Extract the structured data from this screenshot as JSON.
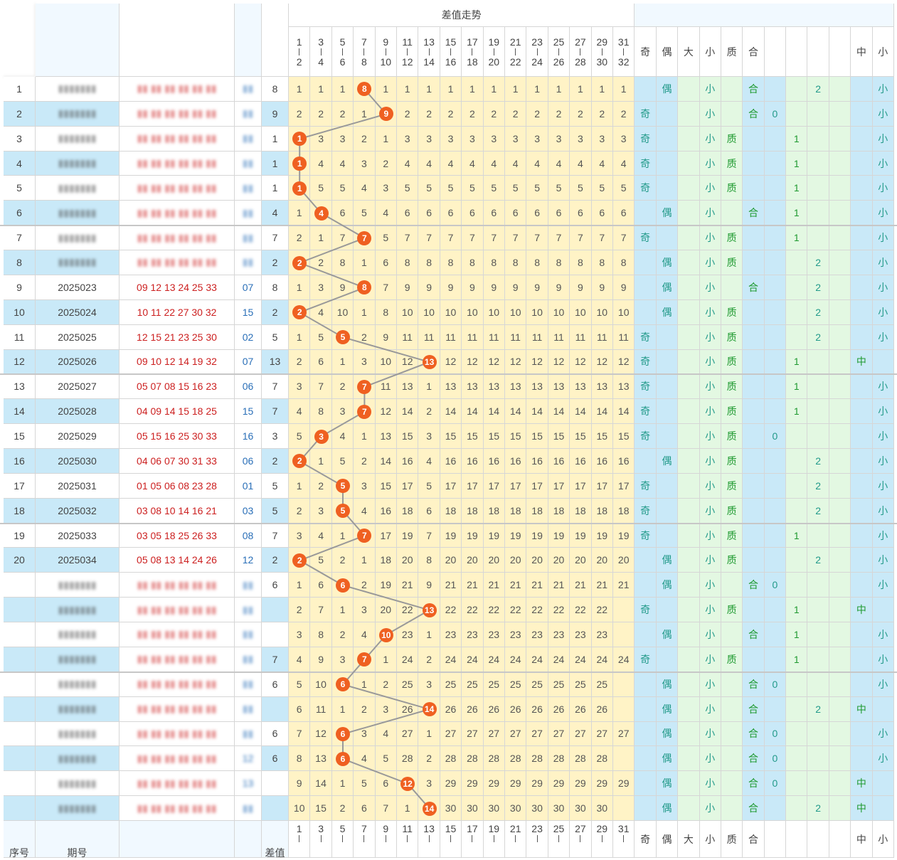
{
  "header": {
    "title": "差值走势",
    "left_labels": {
      "seq": "序号",
      "period": "期号",
      "diff": "差值"
    },
    "tail_labels": [
      "奇",
      "偶",
      "大",
      "小",
      "质",
      "合",
      "",
      "",
      "",
      "",
      "中",
      "小"
    ],
    "col_pairs": [
      [
        "1",
        "2"
      ],
      [
        "3",
        "4"
      ],
      [
        "5",
        "6"
      ],
      [
        "7",
        "8"
      ],
      [
        "9",
        "10"
      ],
      [
        "11",
        "12"
      ],
      [
        "13",
        "14"
      ],
      [
        "15",
        "16"
      ],
      [
        "17",
        "18"
      ],
      [
        "19",
        "20"
      ],
      [
        "21",
        "22"
      ],
      [
        "23",
        "24"
      ],
      [
        "25",
        "26"
      ],
      [
        "27",
        "28"
      ],
      [
        "29",
        "30"
      ],
      [
        "31",
        "32"
      ]
    ],
    "footer_col_tops": [
      "1",
      "3",
      "5",
      "7",
      "9",
      "11",
      "13",
      "15",
      "17",
      "19",
      "21",
      "23",
      "25",
      "27",
      "29",
      "31"
    ]
  },
  "colors": {
    "ball": "#ef6021",
    "line": "#999999",
    "blue_bg": "#c9e9f8",
    "yellow_bg": "#fff3c6",
    "green_bg": "#e3f8e2",
    "red_text": "#cc1f1f",
    "blue_text": "#2a6fb8"
  },
  "rows": [
    {
      "n": "1",
      "period": "",
      "nums": "",
      "blue": "",
      "diff": "8",
      "hit": 3,
      "cells": [
        "1",
        "1",
        "1",
        "8",
        "1",
        "1",
        "1",
        "1",
        "1",
        "1",
        "1",
        "1",
        "1",
        "1",
        "1",
        "1"
      ],
      "odd": "",
      "even": "偶",
      "big": "",
      "small": "小",
      "prime": "",
      "comp": "合",
      "r0": "",
      "r1": "",
      "r2": "2",
      "mid": "",
      "last": "小",
      "blur": true
    },
    {
      "n": "2",
      "period": "",
      "nums": "",
      "blue": "",
      "diff": "9",
      "hit": 4,
      "cells": [
        "2",
        "2",
        "2",
        "1",
        "9",
        "2",
        "2",
        "2",
        "2",
        "2",
        "2",
        "2",
        "2",
        "2",
        "2",
        "2"
      ],
      "odd": "奇",
      "even": "",
      "big": "",
      "small": "小",
      "prime": "",
      "comp": "合",
      "r0": "0",
      "r1": "",
      "r2": "",
      "mid": "",
      "last": "小",
      "blur": true
    },
    {
      "n": "3",
      "period": "",
      "nums": "",
      "blue": "",
      "diff": "1",
      "hit": 0,
      "cells": [
        "1",
        "3",
        "3",
        "2",
        "1",
        "3",
        "3",
        "3",
        "3",
        "3",
        "3",
        "3",
        "3",
        "3",
        "3",
        "3"
      ],
      "odd": "奇",
      "even": "",
      "big": "",
      "small": "小",
      "prime": "质",
      "comp": "",
      "r0": "",
      "r1": "1",
      "r2": "",
      "mid": "",
      "last": "小",
      "blur": true
    },
    {
      "n": "4",
      "period": "",
      "nums": "",
      "blue": "",
      "diff": "1",
      "hit": 0,
      "cells": [
        "1",
        "4",
        "4",
        "3",
        "2",
        "4",
        "4",
        "4",
        "4",
        "4",
        "4",
        "4",
        "4",
        "4",
        "4",
        "4"
      ],
      "odd": "奇",
      "even": "",
      "big": "",
      "small": "小",
      "prime": "质",
      "comp": "",
      "r0": "",
      "r1": "1",
      "r2": "",
      "mid": "",
      "last": "小",
      "blur": true
    },
    {
      "n": "5",
      "period": "",
      "nums": "",
      "blue": "",
      "diff": "1",
      "hit": 0,
      "cells": [
        "1",
        "5",
        "5",
        "4",
        "3",
        "5",
        "5",
        "5",
        "5",
        "5",
        "5",
        "5",
        "5",
        "5",
        "5",
        "5"
      ],
      "odd": "奇",
      "even": "",
      "big": "",
      "small": "小",
      "prime": "质",
      "comp": "",
      "r0": "",
      "r1": "1",
      "r2": "",
      "mid": "",
      "last": "小",
      "blur": true
    },
    {
      "n": "6",
      "period": "",
      "nums": "",
      "blue": "",
      "diff": "4",
      "hit": 1,
      "cells": [
        "1",
        "4",
        "6",
        "5",
        "4",
        "6",
        "6",
        "6",
        "6",
        "6",
        "6",
        "6",
        "6",
        "6",
        "6",
        "6"
      ],
      "odd": "",
      "even": "偶",
      "big": "",
      "small": "小",
      "prime": "",
      "comp": "合",
      "r0": "",
      "r1": "1",
      "r2": "",
      "mid": "",
      "last": "小",
      "blur": true
    },
    {
      "n": "7",
      "period": "",
      "nums": "",
      "blue": "",
      "diff": "7",
      "hit": 3,
      "cells": [
        "2",
        "1",
        "7",
        "7",
        "5",
        "7",
        "7",
        "7",
        "7",
        "7",
        "7",
        "7",
        "7",
        "7",
        "7",
        "7"
      ],
      "odd": "奇",
      "even": "",
      "big": "",
      "small": "小",
      "prime": "质",
      "comp": "",
      "r0": "",
      "r1": "1",
      "r2": "",
      "mid": "",
      "last": "小",
      "blur": true
    },
    {
      "n": "8",
      "period": "",
      "nums": "",
      "blue": "",
      "diff": "2",
      "hit": 0,
      "cells": [
        "2",
        "2",
        "8",
        "1",
        "6",
        "8",
        "8",
        "8",
        "8",
        "8",
        "8",
        "8",
        "8",
        "8",
        "8",
        "8"
      ],
      "odd": "",
      "even": "偶",
      "big": "",
      "small": "小",
      "prime": "质",
      "comp": "",
      "r0": "",
      "r1": "",
      "r2": "2",
      "mid": "",
      "last": "小",
      "blur": true
    },
    {
      "n": "9",
      "period": "2025023",
      "nums": "09 12 13 24 25 33",
      "blue": "07",
      "diff": "8",
      "hit": 3,
      "cells": [
        "1",
        "3",
        "9",
        "8",
        "7",
        "9",
        "9",
        "9",
        "9",
        "9",
        "9",
        "9",
        "9",
        "9",
        "9",
        "9"
      ],
      "odd": "",
      "even": "偶",
      "big": "",
      "small": "小",
      "prime": "",
      "comp": "合",
      "r0": "",
      "r1": "",
      "r2": "2",
      "mid": "",
      "last": "小",
      "blur": false
    },
    {
      "n": "10",
      "period": "2025024",
      "nums": "10 11 22 27 30 32",
      "blue": "15",
      "diff": "2",
      "hit": 0,
      "cells": [
        "2",
        "4",
        "10",
        "1",
        "8",
        "10",
        "10",
        "10",
        "10",
        "10",
        "10",
        "10",
        "10",
        "10",
        "10",
        "10"
      ],
      "odd": "",
      "even": "偶",
      "big": "",
      "small": "小",
      "prime": "质",
      "comp": "",
      "r0": "",
      "r1": "",
      "r2": "2",
      "mid": "",
      "last": "小",
      "blur": false
    },
    {
      "n": "11",
      "period": "2025025",
      "nums": "12 15 21 23 25 30",
      "blue": "02",
      "diff": "5",
      "hit": 2,
      "cells": [
        "1",
        "5",
        "5",
        "2",
        "9",
        "11",
        "11",
        "11",
        "11",
        "11",
        "11",
        "11",
        "11",
        "11",
        "11",
        "11"
      ],
      "odd": "奇",
      "even": "",
      "big": "",
      "small": "小",
      "prime": "质",
      "comp": "",
      "r0": "",
      "r1": "",
      "r2": "2",
      "mid": "",
      "last": "小",
      "blur": false
    },
    {
      "n": "12",
      "period": "2025026",
      "nums": "09 10 12 14 19 32",
      "blue": "07",
      "diff": "13",
      "hit": 6,
      "cells": [
        "2",
        "6",
        "1",
        "3",
        "10",
        "12",
        "13",
        "12",
        "12",
        "12",
        "12",
        "12",
        "12",
        "12",
        "12",
        "12"
      ],
      "odd": "奇",
      "even": "",
      "big": "",
      "small": "小",
      "prime": "质",
      "comp": "",
      "r0": "",
      "r1": "1",
      "r2": "",
      "mid": "中",
      "last": "",
      "blur": false
    },
    {
      "n": "13",
      "period": "2025027",
      "nums": "05 07 08 15 16 23",
      "blue": "06",
      "diff": "7",
      "hit": 3,
      "cells": [
        "3",
        "7",
        "2",
        "7",
        "11",
        "13",
        "1",
        "13",
        "13",
        "13",
        "13",
        "13",
        "13",
        "13",
        "13",
        "13"
      ],
      "odd": "奇",
      "even": "",
      "big": "",
      "small": "小",
      "prime": "质",
      "comp": "",
      "r0": "",
      "r1": "1",
      "r2": "",
      "mid": "",
      "last": "小",
      "blur": false
    },
    {
      "n": "14",
      "period": "2025028",
      "nums": "04 09 14 15 18 25",
      "blue": "15",
      "diff": "7",
      "hit": 3,
      "cells": [
        "4",
        "8",
        "3",
        "7",
        "12",
        "14",
        "2",
        "14",
        "14",
        "14",
        "14",
        "14",
        "14",
        "14",
        "14",
        "14"
      ],
      "odd": "奇",
      "even": "",
      "big": "",
      "small": "小",
      "prime": "质",
      "comp": "",
      "r0": "",
      "r1": "1",
      "r2": "",
      "mid": "",
      "last": "小",
      "blur": false
    },
    {
      "n": "15",
      "period": "2025029",
      "nums": "05 15 16 25 30 33",
      "blue": "16",
      "diff": "3",
      "hit": 1,
      "cells": [
        "5",
        "3",
        "4",
        "1",
        "13",
        "15",
        "3",
        "15",
        "15",
        "15",
        "15",
        "15",
        "15",
        "15",
        "15",
        "15"
      ],
      "odd": "奇",
      "even": "",
      "big": "",
      "small": "小",
      "prime": "质",
      "comp": "",
      "r0": "0",
      "r1": "",
      "r2": "",
      "mid": "",
      "last": "小",
      "blur": false
    },
    {
      "n": "16",
      "period": "2025030",
      "nums": "04 06 07 30 31 33",
      "blue": "06",
      "diff": "2",
      "hit": 0,
      "cells": [
        "2",
        "1",
        "5",
        "2",
        "14",
        "16",
        "4",
        "16",
        "16",
        "16",
        "16",
        "16",
        "16",
        "16",
        "16",
        "16"
      ],
      "odd": "",
      "even": "偶",
      "big": "",
      "small": "小",
      "prime": "质",
      "comp": "",
      "r0": "",
      "r1": "",
      "r2": "2",
      "mid": "",
      "last": "小",
      "blur": false
    },
    {
      "n": "17",
      "period": "2025031",
      "nums": "01 05 06 08 23 28",
      "blue": "01",
      "diff": "5",
      "hit": 2,
      "cells": [
        "1",
        "2",
        "5",
        "3",
        "15",
        "17",
        "5",
        "17",
        "17",
        "17",
        "17",
        "17",
        "17",
        "17",
        "17",
        "17"
      ],
      "odd": "奇",
      "even": "",
      "big": "",
      "small": "小",
      "prime": "质",
      "comp": "",
      "r0": "",
      "r1": "",
      "r2": "2",
      "mid": "",
      "last": "小",
      "blur": false
    },
    {
      "n": "18",
      "period": "2025032",
      "nums": "03 08 10 14 16 21",
      "blue": "03",
      "diff": "5",
      "hit": 2,
      "cells": [
        "2",
        "3",
        "5",
        "4",
        "16",
        "18",
        "6",
        "18",
        "18",
        "18",
        "18",
        "18",
        "18",
        "18",
        "18",
        "18"
      ],
      "odd": "奇",
      "even": "",
      "big": "",
      "small": "小",
      "prime": "质",
      "comp": "",
      "r0": "",
      "r1": "",
      "r2": "2",
      "mid": "",
      "last": "小",
      "blur": false
    },
    {
      "n": "19",
      "period": "2025033",
      "nums": "03 05 18 25 26 33",
      "blue": "08",
      "diff": "7",
      "hit": 3,
      "cells": [
        "3",
        "4",
        "1",
        "7",
        "17",
        "19",
        "7",
        "19",
        "19",
        "19",
        "19",
        "19",
        "19",
        "19",
        "19",
        "19"
      ],
      "odd": "奇",
      "even": "",
      "big": "",
      "small": "小",
      "prime": "质",
      "comp": "",
      "r0": "",
      "r1": "1",
      "r2": "",
      "mid": "",
      "last": "小",
      "blur": false
    },
    {
      "n": "20",
      "period": "2025034",
      "nums": "05 08 13 14 24 26",
      "blue": "12",
      "diff": "2",
      "hit": 0,
      "cells": [
        "2",
        "5",
        "2",
        "1",
        "18",
        "20",
        "8",
        "20",
        "20",
        "20",
        "20",
        "20",
        "20",
        "20",
        "20",
        "20"
      ],
      "odd": "",
      "even": "偶",
      "big": "",
      "small": "小",
      "prime": "质",
      "comp": "",
      "r0": "",
      "r1": "",
      "r2": "2",
      "mid": "",
      "last": "小",
      "blur": false
    },
    {
      "n": "",
      "period": "",
      "nums": "",
      "blue": "",
      "diff": "6",
      "hit": 2,
      "cells": [
        "1",
        "6",
        "6",
        "2",
        "19",
        "21",
        "9",
        "21",
        "21",
        "21",
        "21",
        "21",
        "21",
        "21",
        "21",
        "21"
      ],
      "odd": "",
      "even": "偶",
      "big": "",
      "small": "小",
      "prime": "",
      "comp": "合",
      "r0": "0",
      "r1": "",
      "r2": "",
      "mid": "",
      "last": "小",
      "blur": true
    },
    {
      "n": "",
      "period": "",
      "nums": "",
      "blue": "",
      "diff": "",
      "hit": 6,
      "cells": [
        "2",
        "7",
        "1",
        "3",
        "20",
        "22",
        "13",
        "22",
        "22",
        "22",
        "22",
        "22",
        "22",
        "22",
        "22",
        ""
      ],
      "odd": "奇",
      "even": "",
      "big": "",
      "small": "小",
      "prime": "质",
      "comp": "",
      "r0": "",
      "r1": "1",
      "r2": "",
      "mid": "中",
      "last": "",
      "blur": true
    },
    {
      "n": "",
      "period": "",
      "nums": "",
      "blue": "",
      "diff": "",
      "hit": 4,
      "cells": [
        "3",
        "8",
        "2",
        "4",
        "10",
        "23",
        "1",
        "23",
        "23",
        "23",
        "23",
        "23",
        "23",
        "23",
        "23",
        ""
      ],
      "odd": "",
      "even": "偶",
      "big": "",
      "small": "小",
      "prime": "",
      "comp": "合",
      "r0": "",
      "r1": "1",
      "r2": "",
      "mid": "",
      "last": "小",
      "blur": true
    },
    {
      "n": "",
      "period": "",
      "nums": "",
      "blue": "",
      "diff": "7",
      "hit": 3,
      "cells": [
        "4",
        "9",
        "3",
        "7",
        "1",
        "24",
        "2",
        "24",
        "24",
        "24",
        "24",
        "24",
        "24",
        "24",
        "24",
        "24"
      ],
      "odd": "奇",
      "even": "",
      "big": "",
      "small": "小",
      "prime": "质",
      "comp": "",
      "r0": "",
      "r1": "1",
      "r2": "",
      "mid": "",
      "last": "小",
      "blur": true
    },
    {
      "n": "",
      "period": "",
      "nums": "",
      "blue": "",
      "diff": "6",
      "hit": 2,
      "cells": [
        "5",
        "10",
        "6",
        "1",
        "2",
        "25",
        "3",
        "25",
        "25",
        "25",
        "25",
        "25",
        "25",
        "25",
        "25",
        ""
      ],
      "odd": "",
      "even": "偶",
      "big": "",
      "small": "小",
      "prime": "",
      "comp": "合",
      "r0": "0",
      "r1": "",
      "r2": "",
      "mid": "",
      "last": "小",
      "blur": true
    },
    {
      "n": "",
      "period": "",
      "nums": "",
      "blue": "",
      "diff": "",
      "hit": 6,
      "cells": [
        "6",
        "11",
        "1",
        "2",
        "3",
        "26",
        "14",
        "26",
        "26",
        "26",
        "26",
        "26",
        "26",
        "26",
        "26",
        ""
      ],
      "odd": "",
      "even": "偶",
      "big": "",
      "small": "小",
      "prime": "",
      "comp": "合",
      "r0": "",
      "r1": "",
      "r2": "2",
      "mid": "中",
      "last": "",
      "blur": true
    },
    {
      "n": "",
      "period": "",
      "nums": "",
      "blue": "",
      "diff": "6",
      "hit": 2,
      "cells": [
        "7",
        "12",
        "6",
        "3",
        "4",
        "27",
        "1",
        "27",
        "27",
        "27",
        "27",
        "27",
        "27",
        "27",
        "27",
        "27"
      ],
      "odd": "",
      "even": "偶",
      "big": "",
      "small": "小",
      "prime": "",
      "comp": "合",
      "r0": "0",
      "r1": "",
      "r2": "",
      "mid": "",
      "last": "小",
      "blur": true
    },
    {
      "n": "",
      "period": "",
      "nums": "",
      "blue": "12",
      "diff": "6",
      "hit": 2,
      "cells": [
        "8",
        "13",
        "6",
        "4",
        "5",
        "28",
        "2",
        "28",
        "28",
        "28",
        "28",
        "28",
        "28",
        "28",
        "28",
        ""
      ],
      "odd": "",
      "even": "偶",
      "big": "",
      "small": "小",
      "prime": "",
      "comp": "合",
      "r0": "0",
      "r1": "",
      "r2": "",
      "mid": "",
      "last": "小",
      "blur": true
    },
    {
      "n": "",
      "period": "",
      "nums": "",
      "blue": "13",
      "diff": "",
      "hit": 5,
      "cells": [
        "9",
        "14",
        "1",
        "5",
        "6",
        "12",
        "3",
        "29",
        "29",
        "29",
        "29",
        "29",
        "29",
        "29",
        "29",
        "29"
      ],
      "odd": "",
      "even": "偶",
      "big": "",
      "small": "小",
      "prime": "",
      "comp": "合",
      "r0": "0",
      "r1": "",
      "r2": "",
      "mid": "中",
      "last": "",
      "blur": true
    },
    {
      "n": "",
      "period": "",
      "nums": "",
      "blue": "",
      "diff": "",
      "hit": 6,
      "cells": [
        "10",
        "15",
        "2",
        "6",
        "7",
        "1",
        "14",
        "30",
        "30",
        "30",
        "30",
        "30",
        "30",
        "30",
        "30",
        ""
      ],
      "odd": "",
      "even": "偶",
      "big": "",
      "small": "小",
      "prime": "",
      "comp": "合",
      "r0": "",
      "r1": "",
      "r2": "2",
      "mid": "中",
      "last": "",
      "blur": true
    }
  ]
}
